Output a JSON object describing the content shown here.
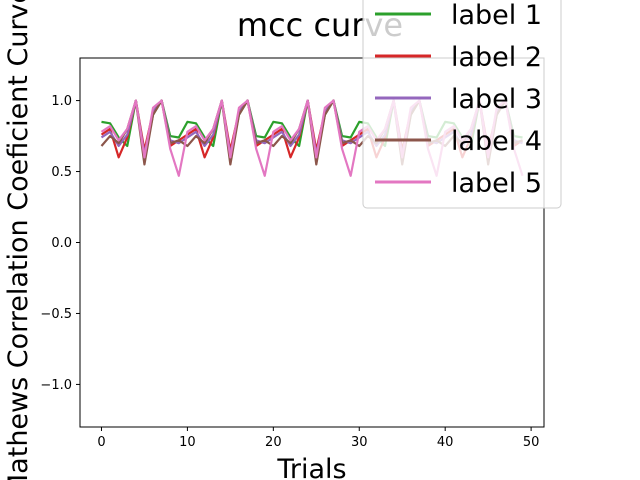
{
  "chart_data": {
    "type": "line",
    "title": "mcc curve",
    "xlabel": "Trials",
    "ylabel": "Mathews Correlation Coeficient Curve",
    "xlim": [
      -2.5,
      51.5
    ],
    "ylim": [
      -1.3,
      1.3
    ],
    "xticks": [
      0,
      10,
      20,
      30,
      40,
      50
    ],
    "yticks": [
      -1.0,
      -0.5,
      0.0,
      0.5,
      1.0
    ],
    "xtick_labels": [
      "0",
      "10",
      "20",
      "30",
      "40",
      "50"
    ],
    "ytick_labels": [
      "−1.0",
      "−0.5",
      "0.0",
      "0.5",
      "1.0"
    ],
    "legend_position": "top-right",
    "series": [
      {
        "name": "label 1",
        "color": "#2ca02c",
        "x": [
          0,
          1,
          2,
          3,
          4,
          5,
          6,
          7,
          8,
          9,
          10,
          11,
          12,
          13,
          14,
          15,
          16,
          17,
          18,
          19,
          20,
          21,
          22,
          23,
          24,
          25,
          26,
          27,
          28,
          29,
          30,
          31,
          32,
          33,
          34,
          35,
          36,
          37,
          38,
          39,
          40,
          41,
          42,
          43,
          44,
          45,
          46,
          47,
          48,
          49
        ],
        "values": [
          0.85,
          0.84,
          0.74,
          0.68,
          1.0,
          0.6,
          0.9,
          1.0,
          0.75,
          0.74,
          0.85,
          0.84,
          0.74,
          0.68,
          1.0,
          0.6,
          0.9,
          1.0,
          0.75,
          0.74,
          0.85,
          0.84,
          0.74,
          0.68,
          1.0,
          0.6,
          0.9,
          1.0,
          0.75,
          0.74,
          0.85,
          0.84,
          0.74,
          0.68,
          1.0,
          0.6,
          0.9,
          1.0,
          0.75,
          0.74,
          0.85,
          0.84,
          0.74,
          0.68,
          1.0,
          0.6,
          0.9,
          1.0,
          0.75,
          0.74
        ]
      },
      {
        "name": "label 2",
        "color": "#d62728",
        "x": [
          0,
          1,
          2,
          3,
          4,
          5,
          6,
          7,
          8,
          9,
          10,
          11,
          12,
          13,
          14,
          15,
          16,
          17,
          18,
          19,
          20,
          21,
          22,
          23,
          24,
          25,
          26,
          27,
          28,
          29,
          30,
          31,
          32,
          33,
          34,
          35,
          36,
          37,
          38,
          39,
          40,
          41,
          42,
          43,
          44,
          45,
          46,
          47,
          48,
          49
        ],
        "values": [
          0.76,
          0.8,
          0.6,
          0.74,
          1.0,
          0.65,
          0.92,
          1.0,
          0.68,
          0.72,
          0.76,
          0.8,
          0.6,
          0.74,
          1.0,
          0.65,
          0.92,
          1.0,
          0.68,
          0.72,
          0.76,
          0.8,
          0.6,
          0.74,
          1.0,
          0.65,
          0.92,
          1.0,
          0.68,
          0.72,
          0.76,
          0.8,
          0.6,
          0.74,
          1.0,
          0.65,
          0.92,
          1.0,
          0.68,
          0.72,
          0.76,
          0.8,
          0.6,
          0.74,
          1.0,
          0.65,
          0.92,
          1.0,
          0.68,
          0.72
        ]
      },
      {
        "name": "label 3",
        "color": "#9467bd",
        "x": [
          0,
          1,
          2,
          3,
          4,
          5,
          6,
          7,
          8,
          9,
          10,
          11,
          12,
          13,
          14,
          15,
          16,
          17,
          18,
          19,
          20,
          21,
          22,
          23,
          24,
          25,
          26,
          27,
          28,
          29,
          30,
          31,
          32,
          33,
          34,
          35,
          36,
          37,
          38,
          39,
          40,
          41,
          42,
          43,
          44,
          45,
          46,
          47,
          48,
          49
        ],
        "values": [
          0.74,
          0.78,
          0.68,
          0.76,
          1.0,
          0.62,
          0.92,
          1.0,
          0.72,
          0.7,
          0.74,
          0.78,
          0.68,
          0.76,
          1.0,
          0.62,
          0.92,
          1.0,
          0.72,
          0.7,
          0.74,
          0.78,
          0.68,
          0.76,
          1.0,
          0.62,
          0.92,
          1.0,
          0.72,
          0.7,
          0.74,
          0.78,
          0.68,
          0.76,
          1.0,
          0.62,
          0.92,
          1.0,
          0.72,
          0.7,
          0.74,
          0.78,
          0.68,
          0.76,
          1.0,
          0.62,
          0.92,
          1.0,
          0.72,
          0.7
        ]
      },
      {
        "name": "label 4",
        "color": "#8c564b",
        "x": [
          0,
          1,
          2,
          3,
          4,
          5,
          6,
          7,
          8,
          9,
          10,
          11,
          12,
          13,
          14,
          15,
          16,
          17,
          18,
          19,
          20,
          21,
          22,
          23,
          24,
          25,
          26,
          27,
          28,
          29,
          30,
          31,
          32,
          33,
          34,
          35,
          36,
          37,
          38,
          39,
          40,
          41,
          42,
          43,
          44,
          45,
          46,
          47,
          48,
          49
        ],
        "values": [
          0.68,
          0.75,
          0.7,
          0.8,
          1.0,
          0.55,
          0.9,
          1.0,
          0.7,
          0.72,
          0.68,
          0.75,
          0.7,
          0.8,
          1.0,
          0.55,
          0.9,
          1.0,
          0.7,
          0.72,
          0.68,
          0.75,
          0.7,
          0.8,
          1.0,
          0.55,
          0.9,
          1.0,
          0.7,
          0.72,
          0.68,
          0.75,
          0.7,
          0.8,
          1.0,
          0.55,
          0.9,
          1.0,
          0.7,
          0.72,
          0.68,
          0.75,
          0.7,
          0.8,
          1.0,
          0.55,
          0.9,
          1.0,
          0.7,
          0.72
        ]
      },
      {
        "name": "label 5",
        "color": "#e377c2",
        "x": [
          0,
          1,
          2,
          3,
          4,
          5,
          6,
          7,
          8,
          9,
          10,
          11,
          12,
          13,
          14,
          15,
          16,
          17,
          18,
          19,
          20,
          21,
          22,
          23,
          24,
          25,
          26,
          27,
          28,
          29,
          30,
          31,
          32,
          33,
          34,
          35,
          36,
          37,
          38,
          39,
          40,
          41,
          42,
          43,
          44,
          45,
          46,
          47,
          48,
          49
        ],
        "values": [
          0.78,
          0.82,
          0.72,
          0.8,
          1.0,
          0.6,
          0.95,
          1.0,
          0.66,
          0.47,
          0.78,
          0.82,
          0.72,
          0.8,
          1.0,
          0.6,
          0.95,
          1.0,
          0.66,
          0.47,
          0.78,
          0.82,
          0.72,
          0.8,
          1.0,
          0.6,
          0.95,
          1.0,
          0.66,
          0.47,
          0.78,
          0.82,
          0.72,
          0.8,
          1.0,
          0.6,
          0.95,
          1.0,
          0.66,
          0.47,
          0.78,
          0.82,
          0.72,
          0.8,
          1.0,
          0.6,
          0.95,
          1.0,
          0.66,
          0.47
        ]
      }
    ]
  }
}
